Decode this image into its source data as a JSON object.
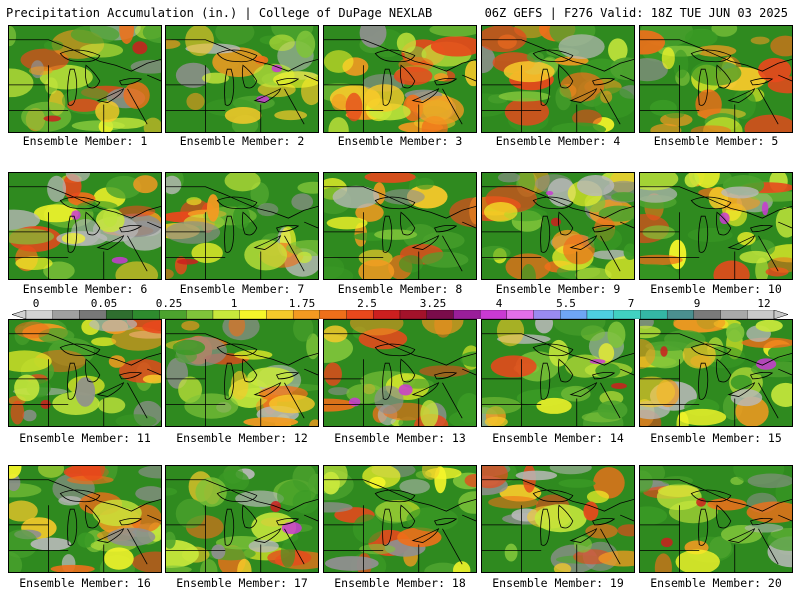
{
  "header": {
    "left_title": "Precipitation Accumulation (in.) | College of DuPage NEXLAB",
    "right_title": "06Z GEFS | F276 Valid: 18Z TUE JUN 03 2025"
  },
  "colorbar": {
    "labels": [
      "0",
      "0.05",
      "0.25",
      "1",
      "1.75",
      "2.5",
      "3.25",
      "4",
      "5.5",
      "7",
      "9",
      "12"
    ],
    "colors": [
      "#d2d2d2",
      "#a0a0a0",
      "#787878",
      "#2f6e2f",
      "#2e8b2e",
      "#4ca32e",
      "#7fc43a",
      "#c8e83c",
      "#f6f62a",
      "#f6c92a",
      "#f39a21",
      "#ef6f1a",
      "#e8481c",
      "#cc1f1f",
      "#a3122a",
      "#7a0c4a",
      "#9a1e9a",
      "#c93ad3",
      "#e26fe8",
      "#9a8af0",
      "#6fa6f5",
      "#4ecfe0",
      "#41d1c1",
      "#34b7a5",
      "#4a8f8f",
      "#7a7a7a",
      "#a9a9a9",
      "#c9c9c9"
    ]
  },
  "members": [
    {
      "caption": "Ensemble Member: 1"
    },
    {
      "caption": "Ensemble Member: 2"
    },
    {
      "caption": "Ensemble Member: 3"
    },
    {
      "caption": "Ensemble Member: 4"
    },
    {
      "caption": "Ensemble Member: 5"
    },
    {
      "caption": "Ensemble Member: 6"
    },
    {
      "caption": "Ensemble Member: 7"
    },
    {
      "caption": "Ensemble Member: 8"
    },
    {
      "caption": "Ensemble Member: 9"
    },
    {
      "caption": "Ensemble Member: 10"
    },
    {
      "caption": "Ensemble Member: 11"
    },
    {
      "caption": "Ensemble Member: 12"
    },
    {
      "caption": "Ensemble Member: 13"
    },
    {
      "caption": "Ensemble Member: 14"
    },
    {
      "caption": "Ensemble Member: 15"
    },
    {
      "caption": "Ensemble Member: 16"
    },
    {
      "caption": "Ensemble Member: 17"
    },
    {
      "caption": "Ensemble Member: 18"
    },
    {
      "caption": "Ensemble Member: 19"
    },
    {
      "caption": "Ensemble Member: 20"
    }
  ]
}
